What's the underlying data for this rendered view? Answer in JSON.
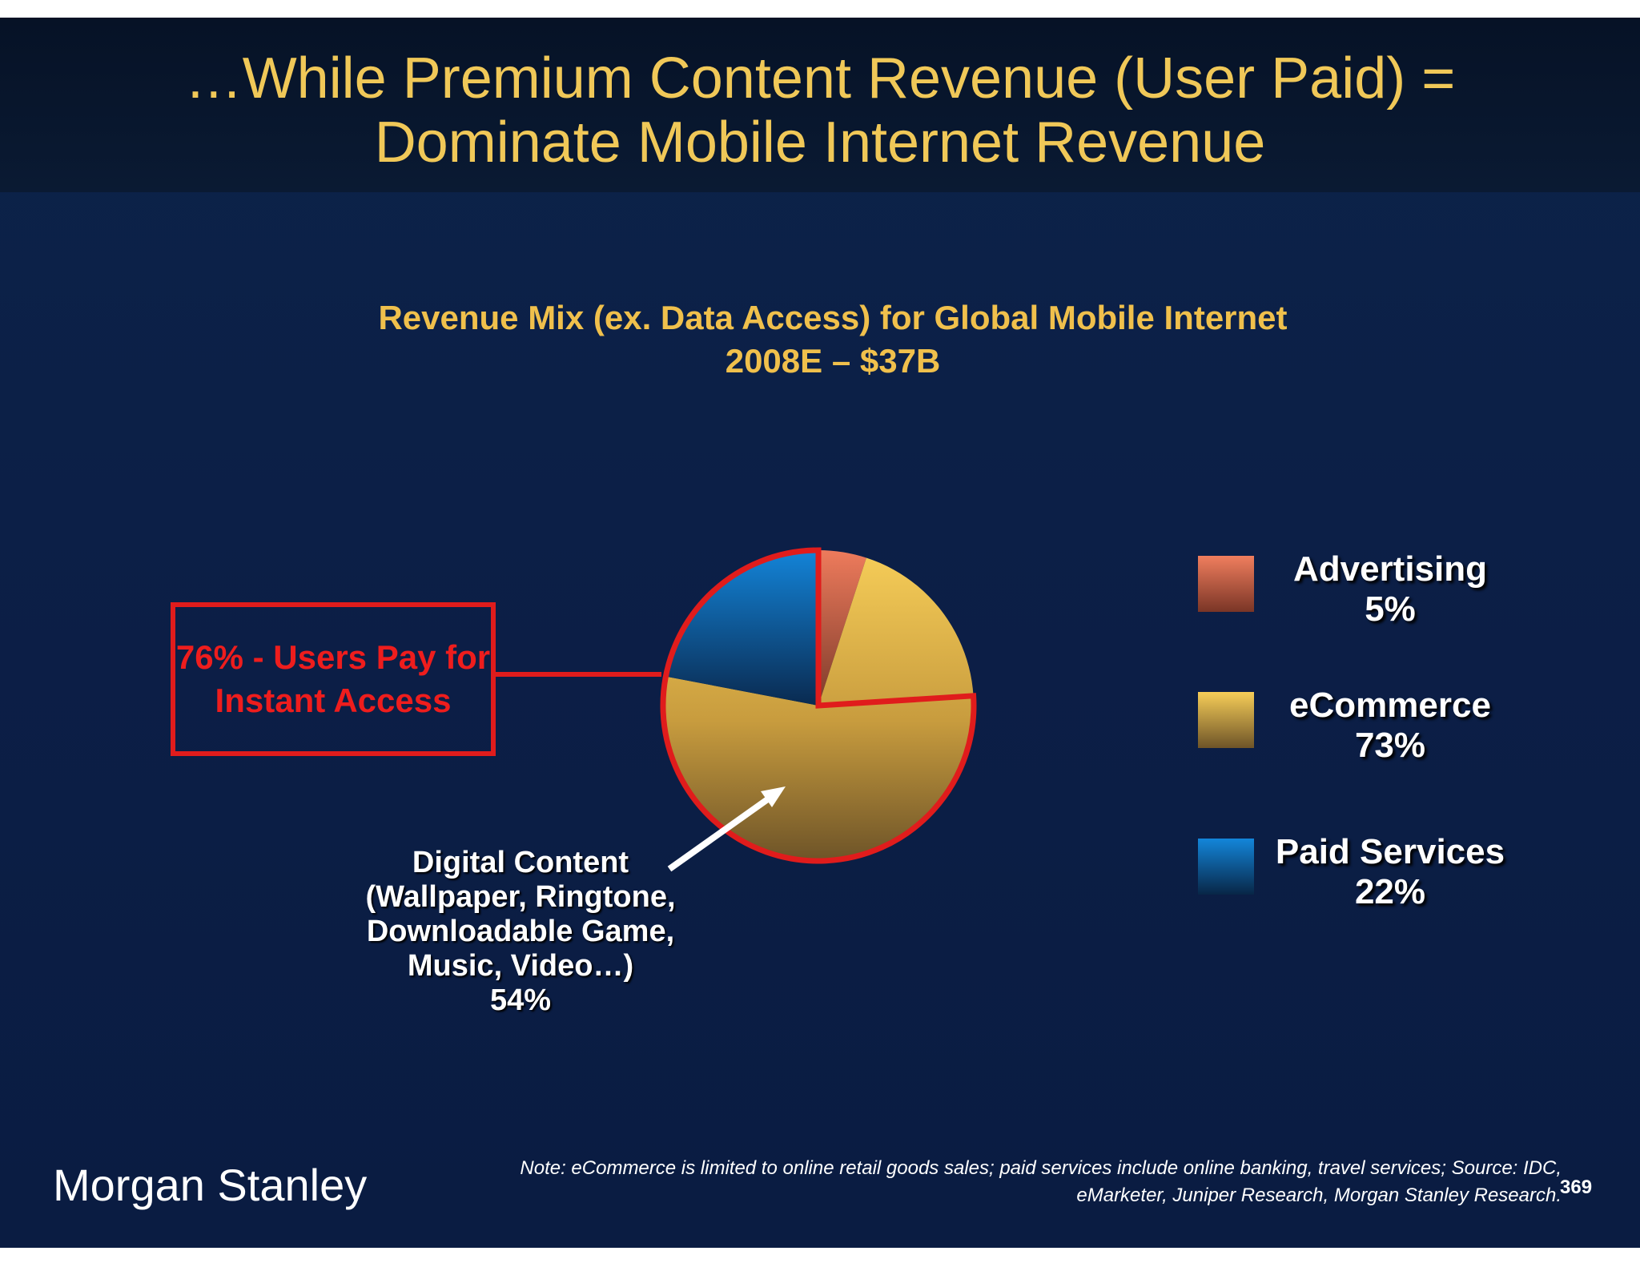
{
  "slide": {
    "title_line1": "…While Premium Content Revenue (User Paid) =",
    "title_line2": "Dominate Mobile Internet Revenue",
    "callout": "76% - Users Pay for Instant Access",
    "brand": "Morgan Stanley",
    "note_line1": "Note: eCommerce is limited to online retail goods sales; paid services include online banking, travel services; Source: IDC,",
    "note_line2": "eMarketer, Juniper Research, Morgan Stanley Research.",
    "page_number": "369"
  },
  "colors": {
    "title": "#f0c858",
    "callout_red": "#e01c1c",
    "advertising": "#e8745a",
    "ecommerce": "#e8bd4c",
    "paid_services": "#1276c4",
    "background": "#0c1f47"
  },
  "chart_data": {
    "type": "pie",
    "title": "Revenue Mix (ex. Data Access) for Global Mobile Internet",
    "subtitle": "2008E – $37B",
    "slices": [
      {
        "name": "Advertising",
        "value": 5,
        "label": "5%"
      },
      {
        "name": "eCommerce",
        "value": 73,
        "label": "73%"
      },
      {
        "name": "Paid Services",
        "value": 22,
        "label": "22%"
      }
    ],
    "annotation": {
      "lines": [
        "Digital Content",
        "(Wallpaper, Ringtone,",
        "Downloadable Game,",
        "Music, Video…)",
        "54%"
      ],
      "value": 54
    },
    "highlight_value": 76,
    "legend_position": "right"
  }
}
